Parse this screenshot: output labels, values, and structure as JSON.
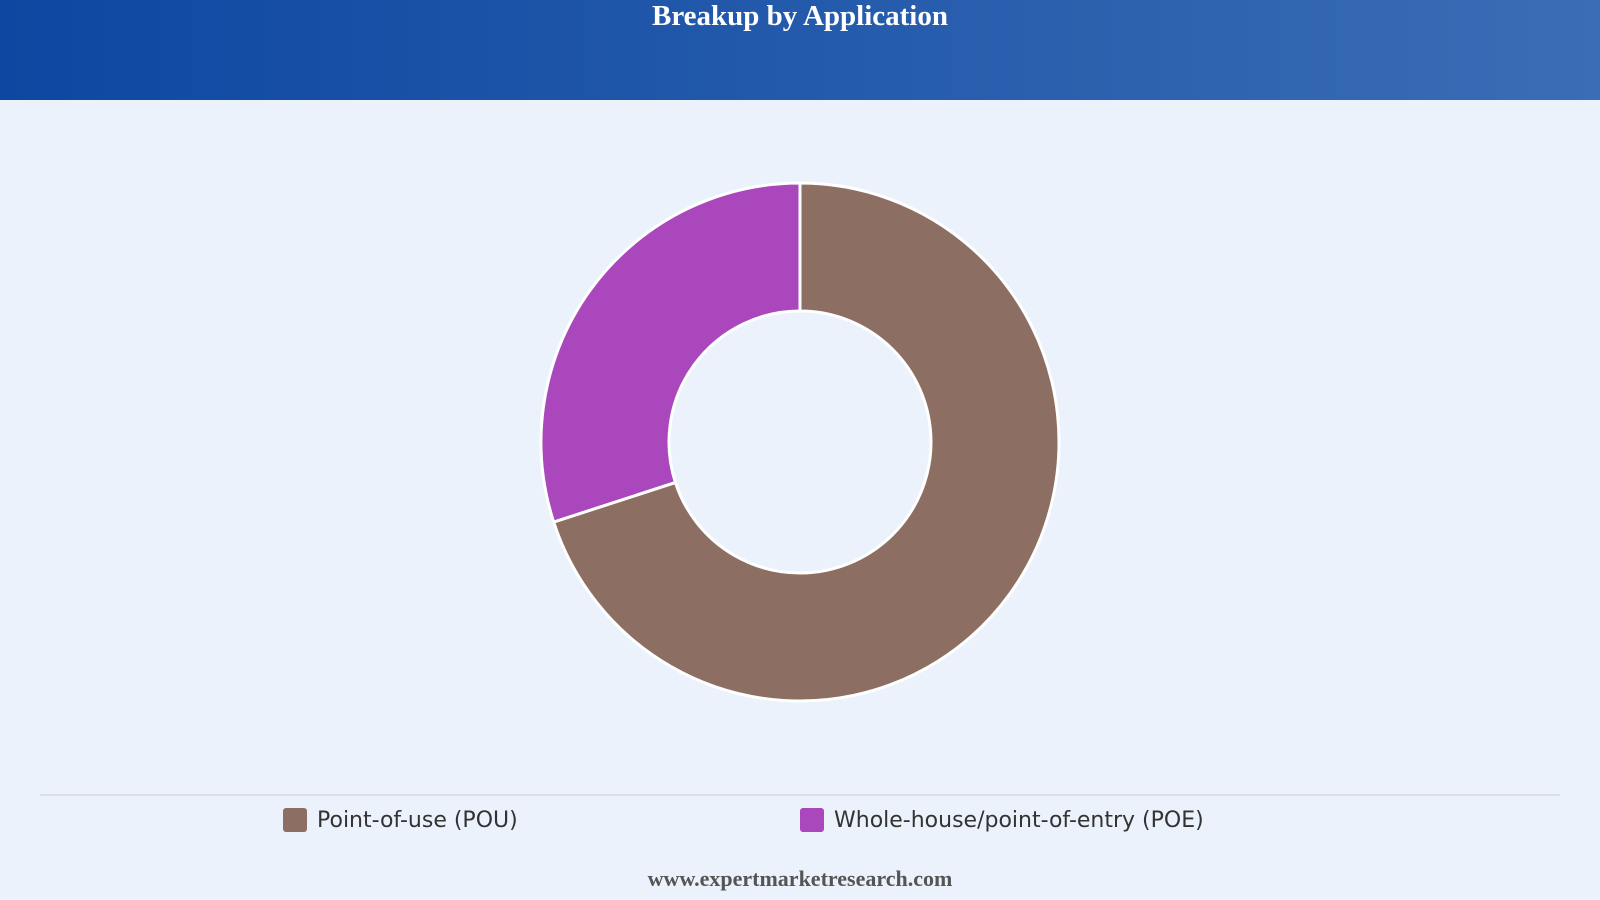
{
  "chart_data": {
    "type": "donut",
    "title": "Breakup by Application",
    "categories": [
      "Point-of-use (POU)",
      "Whole-house/point-of-entry (POE)"
    ],
    "values": [
      70,
      30
    ],
    "colors": [
      "#8d6e63",
      "#ab47bc"
    ]
  },
  "footer": "www.expertmarketresearch.com"
}
